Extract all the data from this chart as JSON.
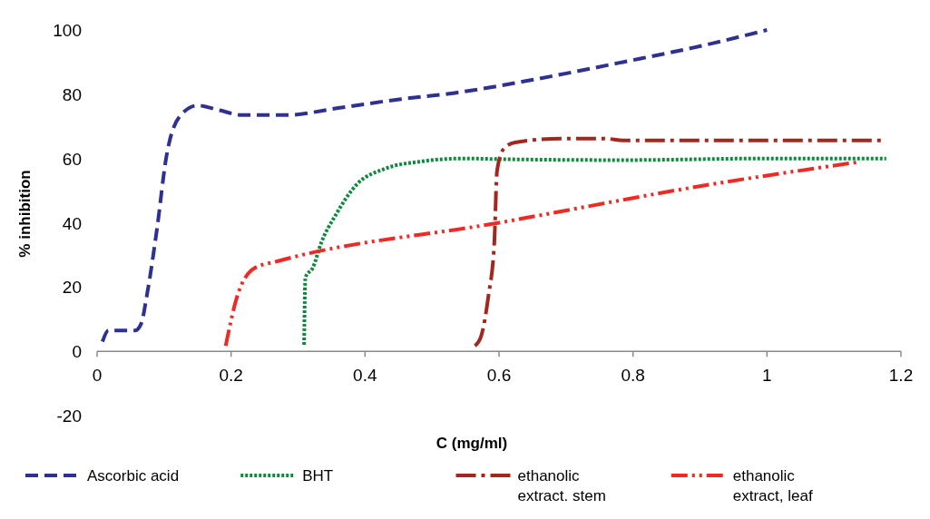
{
  "chart_data": {
    "type": "line",
    "xlabel": "C (mg/ml)",
    "ylabel": "% inhibition",
    "xlim": [
      0,
      1.2
    ],
    "ylim": [
      -20,
      100
    ],
    "xticks": [
      0,
      0.2,
      0.4,
      0.6,
      0.8,
      1,
      1.2
    ],
    "yticks": [
      -20,
      0,
      20,
      40,
      60,
      80,
      100
    ],
    "grid": false,
    "legend": "bottom",
    "series": [
      {
        "name": "Ascorbic acid",
        "color": "#2e3192",
        "line_style": "dashed",
        "x": [
          0.008,
          0.017,
          0.03,
          0.057,
          0.066,
          0.074,
          0.09,
          0.103,
          0.123,
          0.15,
          0.183,
          0.216,
          0.282,
          0.36,
          0.454,
          0.534,
          0.653,
          0.785,
          0.918,
          1.0
        ],
        "values": [
          3,
          6.5,
          6.5,
          6.5,
          8.7,
          17,
          39,
          60,
          73,
          76.5,
          75,
          73.5,
          73.5,
          75.7,
          78.5,
          80.4,
          84.6,
          90,
          95.8,
          100
        ]
      },
      {
        "name": "BHT",
        "color": "#0f8a3c",
        "line_style": "dotted",
        "x": [
          0.309,
          0.311,
          0.322,
          0.335,
          0.355,
          0.388,
          0.428,
          0.481,
          0.547,
          0.6,
          0.785,
          0.997,
          1.178
        ],
        "values": [
          2,
          23,
          26,
          34,
          42,
          52,
          56.7,
          59,
          60,
          59.8,
          59.5,
          60,
          60
        ]
      },
      {
        "name": "ethanolic extract.  stem",
        "color": "#a0281e",
        "line_style": "dashdot",
        "x": [
          0.564,
          0.573,
          0.584,
          0.593,
          0.597,
          0.607,
          0.624,
          0.693,
          0.759,
          0.785,
          1.178
        ],
        "values": [
          1.7,
          4.5,
          17,
          34,
          56,
          63,
          65,
          66.2,
          66.2,
          65.6,
          65.6
        ]
      },
      {
        "name": "ethanolic extract, leaf",
        "color": "#ee2a24",
        "line_style": "dashdotdot",
        "x": [
          0.192,
          0.209,
          0.236,
          0.269,
          0.6,
          0.918,
          1.14
        ],
        "values": [
          1.7,
          17,
          26,
          28,
          40,
          52,
          59
        ]
      }
    ]
  }
}
